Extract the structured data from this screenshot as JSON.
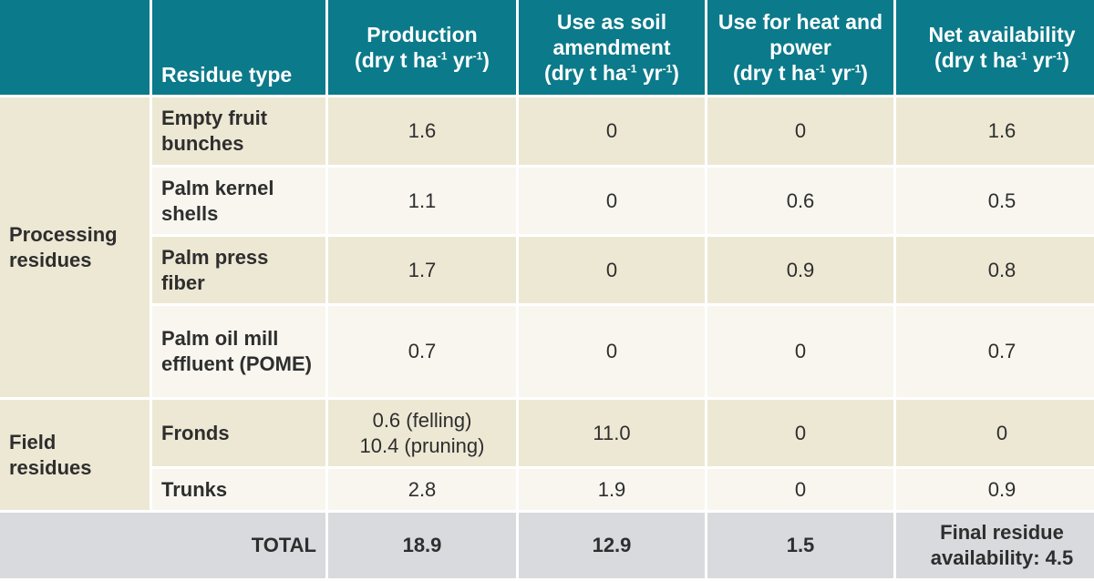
{
  "headers": {
    "residue_type": "Residue type",
    "production": {
      "label": "Production",
      "unit_pre": "(dry t ha",
      "sup1": "-1",
      "unit_mid": " yr",
      "sup2": "-1",
      "unit_post": ")"
    },
    "soil": {
      "label": "Use as soil amendment",
      "unit_pre": "(dry t ha",
      "sup1": "-1",
      "unit_mid": " yr",
      "sup2": "-1",
      "unit_post": ")"
    },
    "heat": {
      "label": "Use for heat and power",
      "unit_pre": "(dry t ha",
      "sup1": "-1",
      "unit_mid": " yr",
      "sup2": "-1",
      "unit_post": ")"
    },
    "net": {
      "label": "Net availability",
      "unit_pre": "(dry t ha",
      "sup1": "-1",
      "unit_mid": " yr",
      "sup2": "-1",
      "unit_post": ")"
    }
  },
  "groups": {
    "processing": "Processing residues",
    "field": "Field residues"
  },
  "rows": [
    {
      "name": "Empty fruit bunches",
      "production": "1.6",
      "soil": "0",
      "heat": "0",
      "net": "1.6"
    },
    {
      "name": "Palm kernel shells",
      "production": "1.1",
      "soil": "0",
      "heat": "0.6",
      "net": "0.5"
    },
    {
      "name": "Palm press fiber",
      "production": "1.7",
      "soil": "0",
      "heat": "0.9",
      "net": "0.8"
    },
    {
      "name": "Palm oil mill effluent (POME)",
      "production": "0.7",
      "soil": "0",
      "heat": "0",
      "net": "0.7"
    },
    {
      "name": "Fronds",
      "production_line1": "0.6 (felling)",
      "production_line2": "10.4 (pruning)",
      "soil": "11.0",
      "heat": "0",
      "net": "0"
    },
    {
      "name": "Trunks",
      "production": "2.8",
      "soil": "1.9",
      "heat": "0",
      "net": "0.9"
    }
  ],
  "total": {
    "label": "TOTAL",
    "production": "18.9",
    "soil": "12.9",
    "heat": "1.5",
    "net": "Final residue availability: 4.5"
  },
  "colors": {
    "header_bg": "#0b7a8a",
    "row_shade": "#ede8d4",
    "row_light": "#f8f6ef",
    "total_bg": "#d8dadd"
  }
}
